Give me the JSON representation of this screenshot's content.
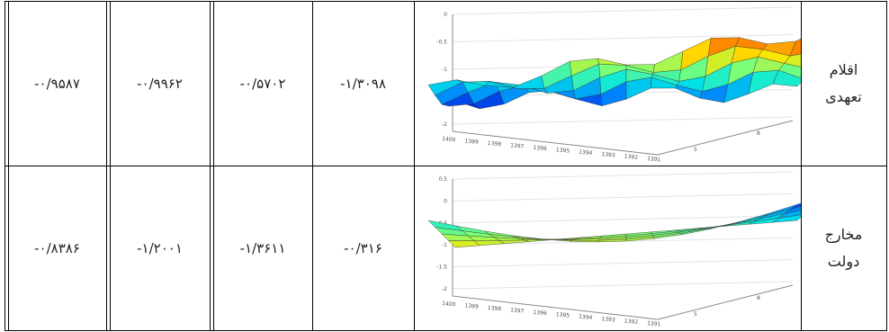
{
  "table": {
    "rows": [
      {
        "label": [
          "اقلام",
          "تعهدی"
        ],
        "plot": {
          "yticks": [
            "0",
            "-0.5",
            "-1",
            "-1.5",
            "-2"
          ],
          "xticks": [
            "1400",
            "1399",
            "1398",
            "1397",
            "1396",
            "1395",
            "1394",
            "1393",
            "1392",
            "1391"
          ],
          "zticks": [
            "5",
            "8"
          ]
        },
        "values": [
          "-۰/۹۵۸۷",
          "-۰/۹۹۶۲",
          "-۰/۵۷۰۲",
          "-۱/۳۰۹۸"
        ]
      },
      {
        "label": [
          "مخارج",
          "دولت"
        ],
        "plot": {
          "yticks": [
            "0.5",
            "0",
            "-0.5",
            "-1",
            "-1.5",
            "-2"
          ],
          "xticks": [
            "1400",
            "1399",
            "1398",
            "1397",
            "1396",
            "1395",
            "1394",
            "1393",
            "1392",
            "1391"
          ],
          "zticks": [
            "5",
            "8"
          ]
        },
        "values": [
          "-۰/۸۳۸۶",
          "-۱/۲۰۰۱",
          "-۱/۳۶۱۱",
          "-۰/۳۱۶"
        ]
      }
    ]
  }
}
